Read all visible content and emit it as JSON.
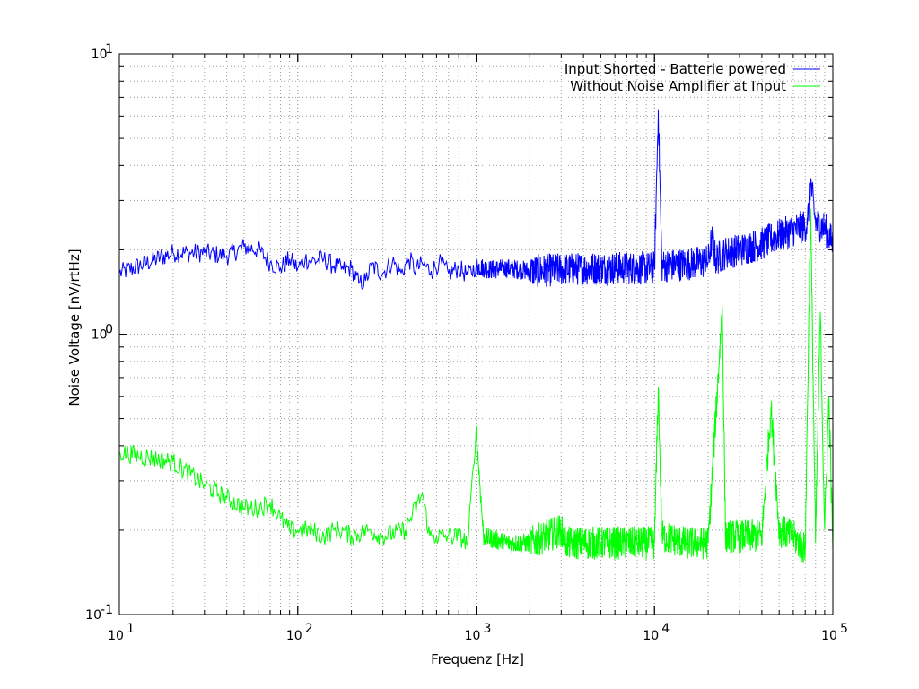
{
  "chart_data": {
    "type": "line",
    "xlabel": "Frequenz [Hz]",
    "ylabel": "Noise Voltage [nV/rtHz]",
    "xscale": "log",
    "yscale": "log",
    "xlim": [
      10,
      100000
    ],
    "ylim": [
      0.1,
      10
    ],
    "grid": true,
    "legend_position": "top-right",
    "x_ticks": [
      {
        "value": 10,
        "base": "10",
        "exp": "1"
      },
      {
        "value": 100,
        "base": "10",
        "exp": "2"
      },
      {
        "value": 1000,
        "base": "10",
        "exp": "3"
      },
      {
        "value": 10000,
        "base": "10",
        "exp": "4"
      },
      {
        "value": 100000,
        "base": "10",
        "exp": "5"
      }
    ],
    "y_ticks": [
      {
        "value": 0.1,
        "base": "10",
        "exp": "-1"
      },
      {
        "value": 1,
        "base": "10",
        "exp": "0"
      },
      {
        "value": 10,
        "base": "10",
        "exp": "1"
      }
    ],
    "series": [
      {
        "name": "Input Shorted - Batterie powered",
        "color": "#0000ff",
        "points": [
          [
            10,
            1.65
          ],
          [
            20,
            1.95
          ],
          [
            30,
            1.95
          ],
          [
            40,
            1.9
          ],
          [
            50,
            2.05
          ],
          [
            60,
            2.0
          ],
          [
            70,
            1.8
          ],
          [
            80,
            1.72
          ],
          [
            90,
            1.85
          ],
          [
            100,
            1.72
          ],
          [
            110,
            1.85
          ],
          [
            120,
            1.82
          ],
          [
            140,
            1.85
          ],
          [
            160,
            1.75
          ],
          [
            180,
            1.7
          ],
          [
            200,
            1.72
          ],
          [
            220,
            1.52
          ],
          [
            240,
            1.55
          ],
          [
            260,
            1.75
          ],
          [
            300,
            1.65
          ],
          [
            340,
            1.82
          ],
          [
            380,
            1.65
          ],
          [
            420,
            1.85
          ],
          [
            460,
            1.7
          ],
          [
            500,
            1.78
          ],
          [
            560,
            1.68
          ],
          [
            620,
            1.8
          ],
          [
            700,
            1.65
          ],
          [
            800,
            1.72
          ],
          [
            900,
            1.62
          ],
          [
            1000,
            1.75
          ],
          [
            1200,
            1.7
          ],
          [
            1500,
            1.72
          ],
          [
            2000,
            1.68
          ],
          [
            3000,
            1.7
          ],
          [
            5000,
            1.72
          ],
          [
            8000,
            1.72
          ],
          [
            10000,
            1.72
          ],
          [
            10500,
            6.3
          ],
          [
            11000,
            1.75
          ],
          [
            15000,
            1.78
          ],
          [
            20000,
            1.82
          ],
          [
            21000,
            2.2
          ],
          [
            22000,
            1.85
          ],
          [
            25000,
            1.95
          ],
          [
            30000,
            2.0
          ],
          [
            40000,
            2.1
          ],
          [
            50000,
            2.25
          ],
          [
            60000,
            2.35
          ],
          [
            72000,
            2.45
          ],
          [
            75000,
            3.5
          ],
          [
            80000,
            2.5
          ],
          [
            90000,
            2.4
          ],
          [
            100000,
            2.1
          ]
        ]
      },
      {
        "name": "Without Noise Amplifier at Input",
        "color": "#00ff00",
        "points": [
          [
            10,
            0.38
          ],
          [
            20,
            0.35
          ],
          [
            30,
            0.29
          ],
          [
            40,
            0.26
          ],
          [
            50,
            0.24
          ],
          [
            60,
            0.24
          ],
          [
            70,
            0.25
          ],
          [
            80,
            0.22
          ],
          [
            90,
            0.2
          ],
          [
            100,
            0.2
          ],
          [
            120,
            0.2
          ],
          [
            140,
            0.19
          ],
          [
            160,
            0.2
          ],
          [
            180,
            0.2
          ],
          [
            200,
            0.19
          ],
          [
            250,
            0.2
          ],
          [
            300,
            0.19
          ],
          [
            400,
            0.2
          ],
          [
            500,
            0.27
          ],
          [
            550,
            0.19
          ],
          [
            600,
            0.19
          ],
          [
            700,
            0.19
          ],
          [
            800,
            0.19
          ],
          [
            900,
            0.18
          ],
          [
            1000,
            0.46
          ],
          [
            1100,
            0.19
          ],
          [
            1500,
            0.18
          ],
          [
            2000,
            0.18
          ],
          [
            3000,
            0.2
          ],
          [
            3200,
            0.18
          ],
          [
            5000,
            0.18
          ],
          [
            8000,
            0.18
          ],
          [
            10000,
            0.18
          ],
          [
            10500,
            0.65
          ],
          [
            11000,
            0.19
          ],
          [
            15000,
            0.18
          ],
          [
            20000,
            0.18
          ],
          [
            24000,
            1.25
          ],
          [
            25000,
            0.19
          ],
          [
            30000,
            0.19
          ],
          [
            40000,
            0.19
          ],
          [
            45000,
            0.55
          ],
          [
            50000,
            0.2
          ],
          [
            60000,
            0.19
          ],
          [
            70000,
            0.17
          ],
          [
            75000,
            2.8
          ],
          [
            80000,
            0.18
          ],
          [
            85000,
            1.2
          ],
          [
            90000,
            0.2
          ],
          [
            95000,
            0.6
          ],
          [
            100000,
            0.17
          ]
        ]
      }
    ]
  }
}
